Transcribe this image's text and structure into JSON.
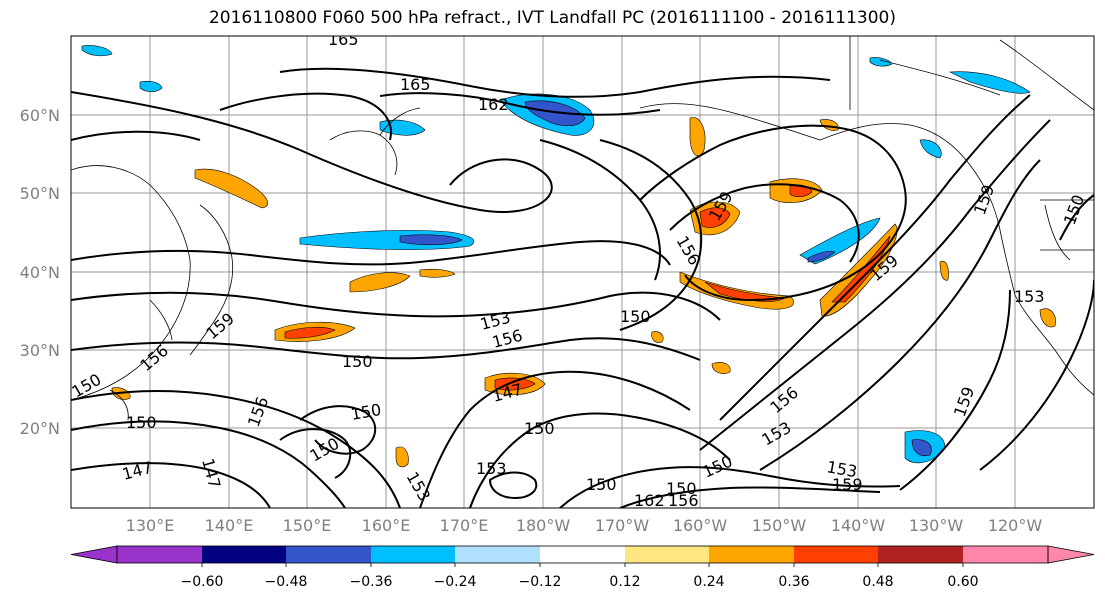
{
  "title": "2016110800 F060 500 hPa refract., IVT Landfall PC (2016111100 - 2016111300)",
  "map": {
    "lat_ticks": [
      "60°N",
      "50°N",
      "40°N",
      "30°N",
      "20°N"
    ],
    "lon_ticks": [
      "130°E",
      "140°E",
      "150°E",
      "160°E",
      "170°E",
      "180°W",
      "170°W",
      "160°W",
      "150°W",
      "140°W",
      "130°W",
      "120°W"
    ],
    "contour_labels": [
      "165",
      "165",
      "162",
      "159",
      "156",
      "159",
      "150",
      "150",
      "153",
      "156",
      "150",
      "147",
      "150",
      "147",
      "150",
      "159",
      "147",
      "156",
      "150",
      "153",
      "150",
      "153",
      "150",
      "150",
      "156",
      "159",
      "162",
      "153",
      "153",
      "159",
      "156",
      "159",
      "150",
      "153",
      "150",
      "156"
    ]
  },
  "colorbar": {
    "tick_labels": [
      "−0.60",
      "−0.48",
      "−0.36",
      "−0.24",
      "−0.12",
      "0.12",
      "0.24",
      "0.36",
      "0.48",
      "0.60"
    ],
    "colors": [
      "#9933cc",
      "#000080",
      "#3355cc",
      "#00bfff",
      "#b0e0ff",
      "#ffffff",
      "#ffe680",
      "#ffa500",
      "#ff4000",
      "#b22222",
      "#ff88aa"
    ]
  }
}
